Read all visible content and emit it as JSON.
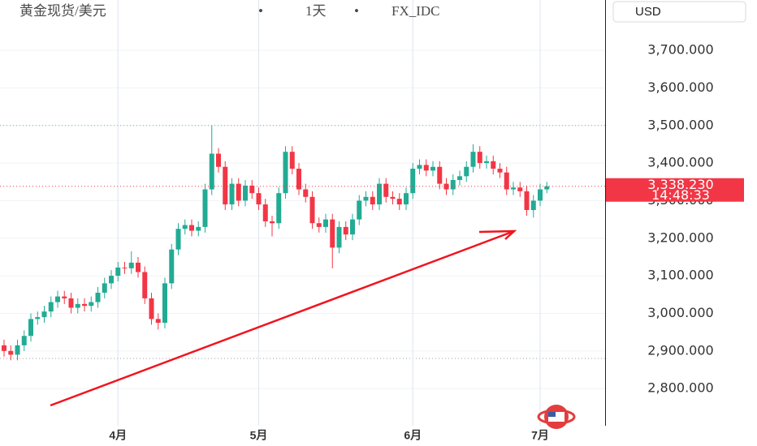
{
  "chart_data": {
    "type": "candlestick",
    "title": "黄金现货/美元",
    "separator": "•",
    "interval": "1天",
    "source": "FX_IDC",
    "currency": "USD",
    "up_color": "#22ab94",
    "down_color": "#f23645",
    "categories": [
      null,
      null,
      null,
      null,
      null,
      null,
      null,
      null,
      null,
      null,
      null,
      null,
      null,
      null,
      null,
      null,
      null,
      "4月",
      null,
      null,
      null,
      null,
      null,
      null,
      null,
      null,
      null,
      null,
      null,
      null,
      null,
      null,
      null,
      null,
      null,
      null,
      null,
      null,
      "5月",
      null,
      null,
      null,
      null,
      null,
      null,
      null,
      null,
      null,
      null,
      null,
      null,
      null,
      null,
      null,
      null,
      null,
      null,
      null,
      null,
      null,
      null,
      "6月",
      null,
      null,
      null,
      null,
      null,
      null,
      null,
      null,
      null,
      null,
      null,
      null,
      null,
      null,
      null,
      null,
      null,
      null,
      "7月",
      null
    ],
    "open": [
      2915,
      2900,
      2890,
      2915,
      2940,
      2985,
      2990,
      3005,
      3030,
      3045,
      3040,
      3015,
      3025,
      3020,
      3030,
      3055,
      3080,
      3100,
      3122,
      3120,
      3135,
      3110,
      3040,
      2985,
      2975,
      3080,
      3170,
      3225,
      3235,
      3220,
      3230,
      3330,
      3425,
      3390,
      3290,
      3345,
      3300,
      3340,
      3320,
      3290,
      3245,
      3240,
      3320,
      3430,
      3385,
      3330,
      3310,
      3240,
      3230,
      3250,
      3175,
      3230,
      3210,
      3250,
      3300,
      3310,
      3290,
      3345,
      3310,
      3305,
      3290,
      3320,
      3385,
      3395,
      3380,
      3390,
      3345,
      3330,
      3355,
      3365,
      3390,
      3430,
      3400,
      3405,
      3385,
      3375,
      3330,
      3335,
      3325,
      3275,
      3300,
      3330
    ],
    "high": [
      2930,
      2915,
      2930,
      2955,
      3000,
      3005,
      3020,
      3045,
      3060,
      3060,
      3055,
      3040,
      3040,
      3045,
      3070,
      3095,
      3115,
      3137,
      3137,
      3165,
      3150,
      3125,
      3055,
      3000,
      3095,
      3185,
      3240,
      3250,
      3250,
      3245,
      3345,
      3500,
      3440,
      3405,
      3360,
      3360,
      3355,
      3355,
      3335,
      3305,
      3260,
      3335,
      3445,
      3445,
      3400,
      3345,
      3325,
      3255,
      3265,
      3265,
      3245,
      3245,
      3265,
      3315,
      3325,
      3325,
      3360,
      3360,
      3325,
      3320,
      3335,
      3400,
      3410,
      3410,
      3405,
      3405,
      3360,
      3370,
      3380,
      3405,
      3450,
      3445,
      3420,
      3420,
      3400,
      3390,
      3350,
      3350,
      3340,
      3315,
      3345,
      3350
    ],
    "low": [
      2885,
      2875,
      2875,
      2900,
      2925,
      2970,
      2975,
      2990,
      3015,
      3025,
      3000,
      3000,
      3005,
      3005,
      3015,
      3040,
      3065,
      3085,
      3105,
      3105,
      3095,
      3025,
      2970,
      2957,
      2960,
      3065,
      3155,
      3210,
      3205,
      3205,
      3215,
      3315,
      3375,
      3275,
      3275,
      3285,
      3285,
      3305,
      3275,
      3230,
      3205,
      3225,
      3305,
      3370,
      3315,
      3295,
      3225,
      3215,
      3215,
      3120,
      3160,
      3195,
      3195,
      3235,
      3285,
      3275,
      3275,
      3295,
      3290,
      3275,
      3275,
      3305,
      3370,
      3365,
      3365,
      3330,
      3315,
      3315,
      3340,
      3350,
      3375,
      3385,
      3385,
      3370,
      3360,
      3315,
      3315,
      3310,
      3260,
      3255,
      3285,
      3320
    ],
    "close": [
      2900,
      2890,
      2915,
      2940,
      2985,
      2990,
      3005,
      3030,
      3045,
      3040,
      3015,
      3025,
      3020,
      3030,
      3055,
      3080,
      3100,
      3122,
      3120,
      3135,
      3110,
      3040,
      2985,
      2975,
      3080,
      3170,
      3225,
      3235,
      3220,
      3230,
      3330,
      3425,
      3390,
      3290,
      3345,
      3300,
      3340,
      3320,
      3290,
      3245,
      3240,
      3320,
      3430,
      3385,
      3330,
      3310,
      3240,
      3230,
      3250,
      3175,
      3230,
      3210,
      3250,
      3300,
      3310,
      3290,
      3345,
      3310,
      3305,
      3290,
      3320,
      3385,
      3395,
      3380,
      3390,
      3345,
      3330,
      3355,
      3365,
      3390,
      3430,
      3400,
      3405,
      3385,
      3375,
      3330,
      3335,
      3325,
      3275,
      3300,
      3330,
      3338.23
    ],
    "ylim": [
      2701,
      3834
    ],
    "yticks": [
      {
        "value": 2800,
        "label": "2,800.000"
      },
      {
        "value": 2900,
        "label": "2,900.000"
      },
      {
        "value": 3000,
        "label": "3,000.000"
      },
      {
        "value": 3100,
        "label": "3,100.000"
      },
      {
        "value": 3200,
        "label": "3,200.000"
      },
      {
        "value": 3300,
        "label": "3,300.000"
      },
      {
        "value": 3400,
        "label": "3,400.000"
      },
      {
        "value": 3500,
        "label": "3,500.000"
      },
      {
        "value": 3600,
        "label": "3,600.000"
      },
      {
        "value": 3700,
        "label": "3,700.000"
      }
    ],
    "grid": true,
    "levels": [
      3500,
      2880
    ],
    "last_price": {
      "value": 3338.23,
      "label": "3,338.230"
    },
    "countdown": "14:48:33"
  }
}
